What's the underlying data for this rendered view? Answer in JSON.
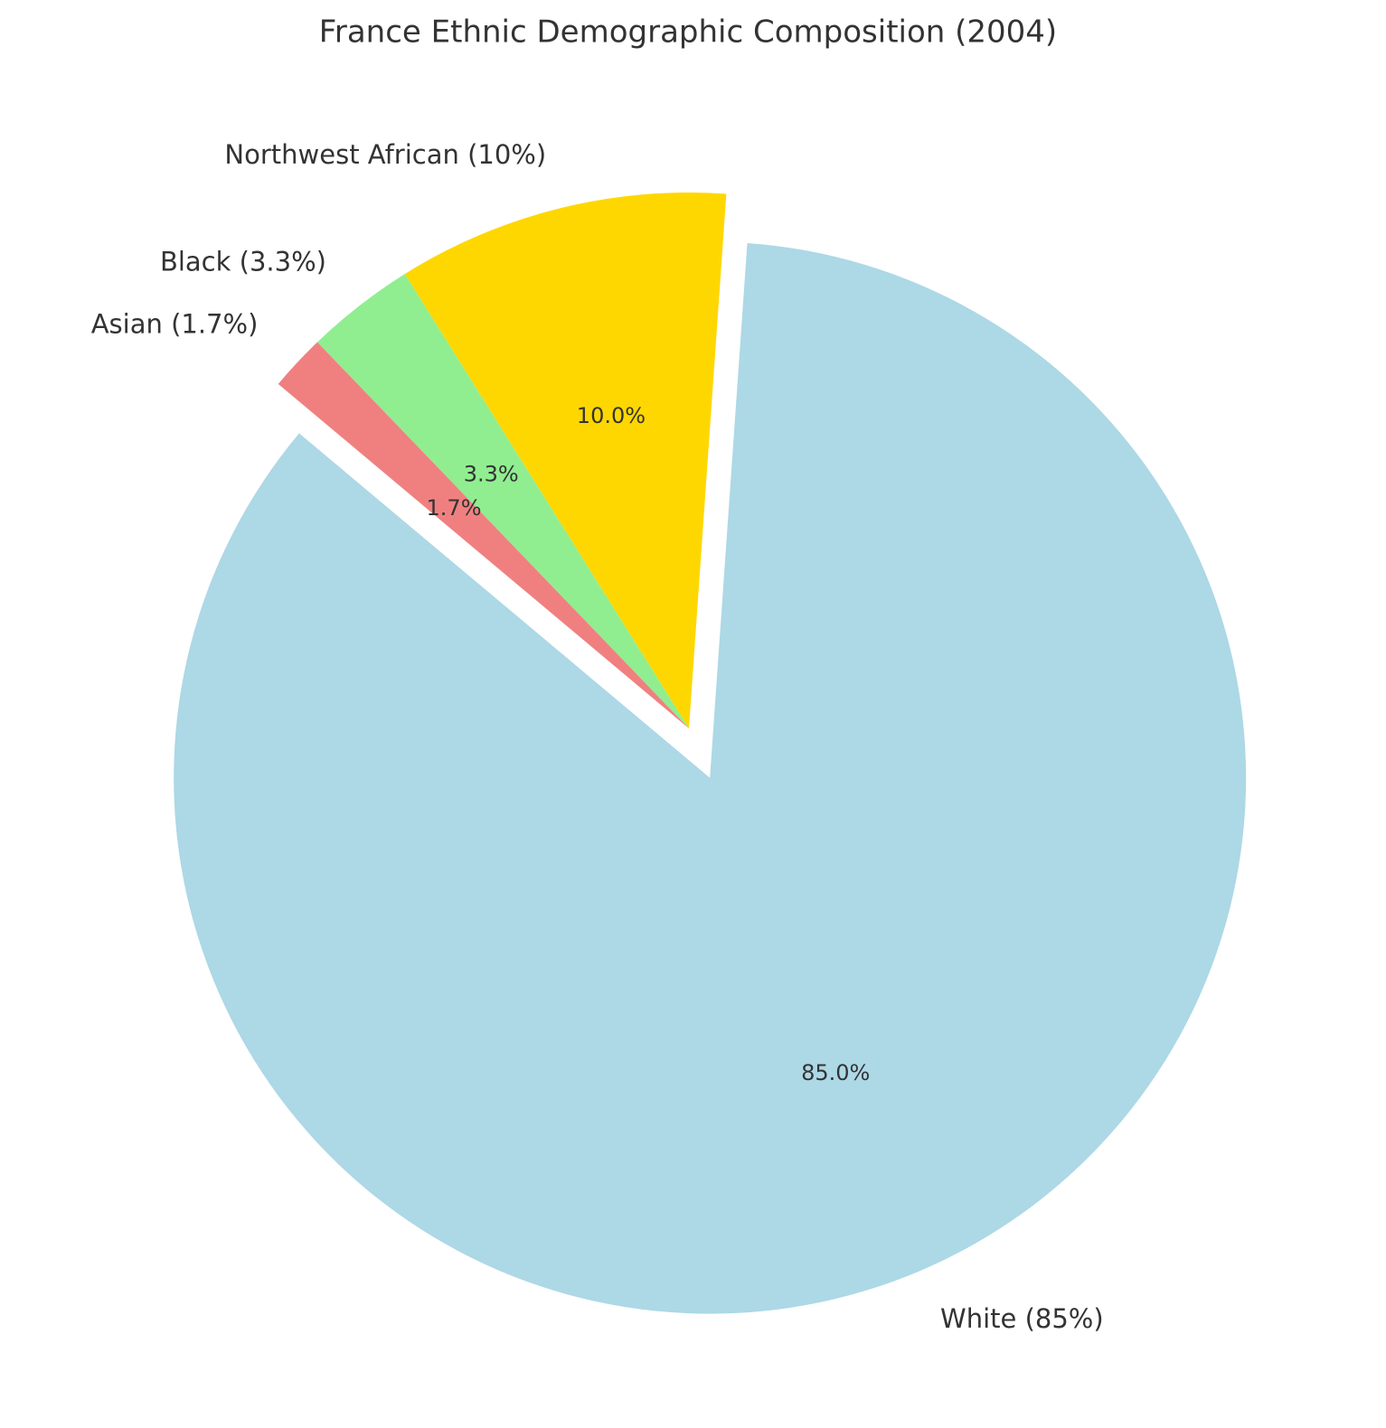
{
  "chart_data": {
    "type": "pie",
    "title": "France Ethnic Demographic Composition (2004)",
    "categories": [
      "White (85%)",
      "Northwest African (10%)",
      "Black (3.3%)",
      "Asian (1.7%)"
    ],
    "values": [
      85,
      10,
      3.3,
      1.7
    ],
    "value_labels": [
      "85.0%",
      "10.0%",
      "3.3%",
      "1.7%"
    ],
    "colors": [
      "#add8e6",
      "#ffd700",
      "#90ee90",
      "#f08080"
    ]
  }
}
